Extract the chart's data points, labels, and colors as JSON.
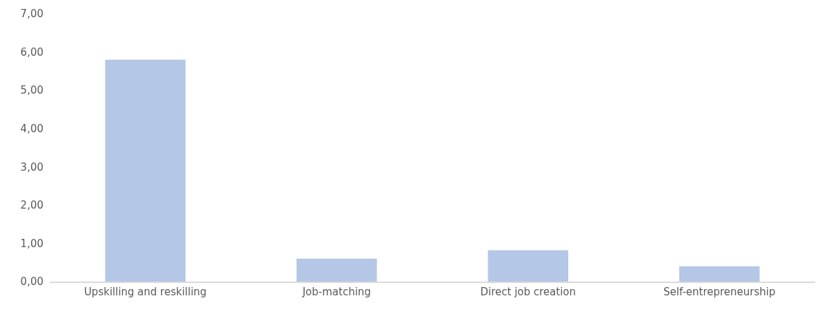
{
  "chart_data": {
    "type": "bar",
    "categories": [
      "Upskilling and reskilling",
      "Job-matching",
      "Direct job creation",
      "Self-entrepreneurship"
    ],
    "values": [
      5.8,
      0.6,
      0.82,
      0.4
    ],
    "color": "#b4c7e7",
    "ylim": [
      0,
      7
    ],
    "yticks": [
      {
        "value": 0,
        "label": "0,00"
      },
      {
        "value": 1,
        "label": "1,00"
      },
      {
        "value": 2,
        "label": "2,00"
      },
      {
        "value": 3,
        "label": "3,00"
      },
      {
        "value": 4,
        "label": "4,00"
      },
      {
        "value": 5,
        "label": "5,00"
      },
      {
        "value": 6,
        "label": "6,00"
      },
      {
        "value": 7,
        "label": "7,00"
      }
    ],
    "grid": false
  }
}
